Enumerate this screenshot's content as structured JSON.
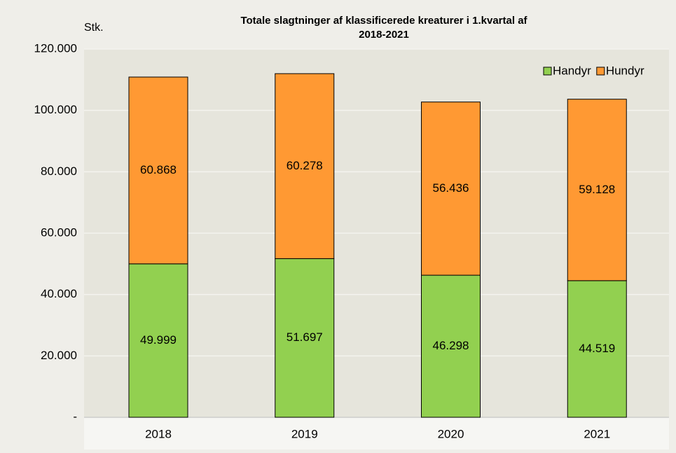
{
  "chart_data": {
    "type": "stacked_bar",
    "title": [
      "Totale slagtninger af klassificerede  kreaturer i 1.kvartal af",
      "2018-2021"
    ],
    "y_label": "Stk.",
    "categories": [
      "2018",
      "2019",
      "2020",
      "2021"
    ],
    "series": [
      {
        "name": "Handyr",
        "color": "#92d050",
        "values": [
          49999,
          51697,
          46298,
          44519
        ],
        "value_labels": [
          "49.999",
          "51.697",
          "46.298",
          "44.519"
        ]
      },
      {
        "name": "Hundyr",
        "color": "#ff9933",
        "values": [
          60868,
          60278,
          56436,
          59128
        ],
        "value_labels": [
          "60.868",
          "60.278",
          "56.436",
          "59.128"
        ]
      }
    ],
    "ylim": [
      0,
      120000
    ],
    "yticks": [
      {
        "value": 0,
        "label": "-"
      },
      {
        "value": 20000,
        "label": "20.000"
      },
      {
        "value": 40000,
        "label": "40.000"
      },
      {
        "value": 60000,
        "label": "60.000"
      },
      {
        "value": 80000,
        "label": "80.000"
      },
      {
        "value": 100000,
        "label": "100.000"
      },
      {
        "value": 120000,
        "label": "120.000"
      }
    ],
    "grid": true,
    "legend": "upper right"
  }
}
